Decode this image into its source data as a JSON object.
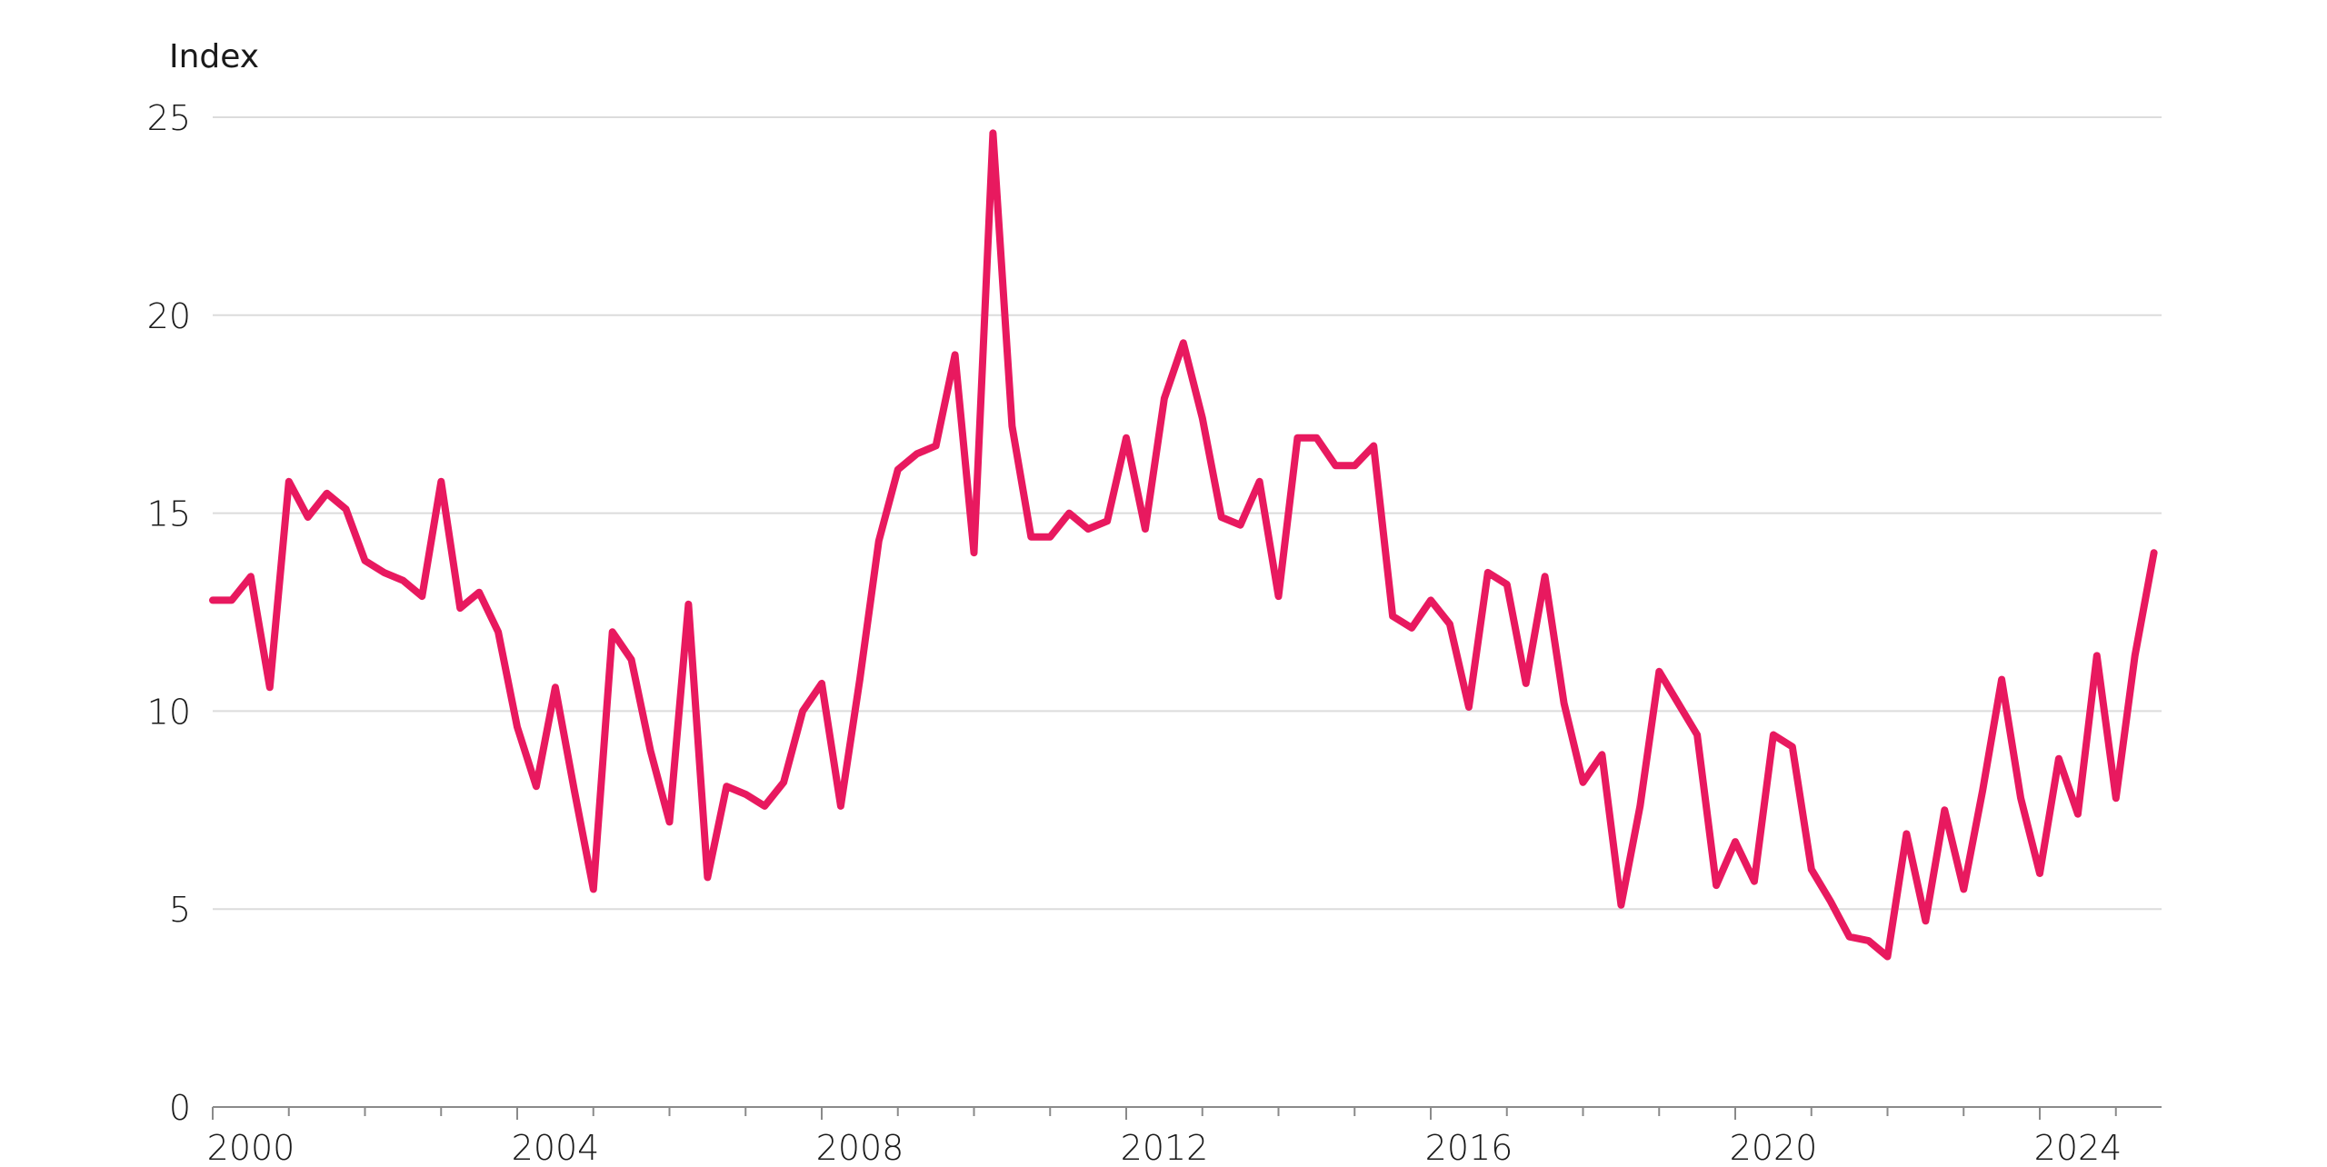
{
  "chart_data": {
    "type": "line",
    "ylabel": "Index",
    "ylim": [
      0,
      25
    ],
    "xlim": [
      2000,
      2025.6
    ],
    "yticks": [
      0,
      5,
      10,
      15,
      20,
      25
    ],
    "xticks": [
      "2000",
      "2004",
      "2008",
      "2012",
      "2016",
      "2020",
      "2024"
    ],
    "grid": true,
    "line_color": "#e8195f",
    "series": [
      {
        "x": [
          2000.0,
          2000.25,
          2000.5,
          2000.75,
          2001.0,
          2001.25,
          2001.5,
          2001.75,
          2002.0,
          2002.25,
          2002.5,
          2002.75,
          2003.0,
          2003.25,
          2003.5,
          2003.75,
          2004.0,
          2004.25,
          2004.5,
          2004.75,
          2005.0,
          2005.25,
          2005.5,
          2005.75,
          2006.0,
          2006.25,
          2006.5,
          2006.75,
          2007.0,
          2007.25,
          2007.5,
          2007.75,
          2008.0,
          2008.25,
          2008.5,
          2008.75,
          2009.0,
          2009.25,
          2009.5,
          2009.75,
          2010.0,
          2010.25,
          2010.5,
          2010.75,
          2011.0,
          2011.25,
          2011.5,
          2011.75,
          2012.0,
          2012.25,
          2012.5,
          2012.75,
          2013.0,
          2013.25,
          2013.5,
          2013.75,
          2014.0,
          2014.25,
          2014.5,
          2014.75,
          2015.0,
          2015.25,
          2015.5,
          2015.75,
          2016.0,
          2016.25,
          2016.5,
          2016.75,
          2017.0,
          2017.25,
          2017.5,
          2017.75,
          2018.0,
          2018.25,
          2018.5,
          2018.75,
          2019.0,
          2019.25,
          2019.5,
          2019.75,
          2020.0,
          2020.25,
          2020.5,
          2020.75,
          2021.0,
          2021.25,
          2021.5,
          2021.75,
          2022.0,
          2022.25,
          2022.5,
          2022.75,
          2023.0,
          2023.25,
          2023.5,
          2023.75,
          2024.0,
          2024.25,
          2024.5,
          2024.75,
          2025.0,
          2025.25,
          2025.5
        ],
        "y": [
          12.8,
          12.8,
          13.4,
          10.6,
          15.8,
          14.9,
          15.5,
          15.1,
          13.8,
          13.5,
          13.3,
          12.9,
          15.8,
          12.6,
          13.0,
          12.0,
          9.6,
          8.1,
          10.6,
          8.0,
          5.5,
          12.0,
          11.3,
          9.0,
          7.2,
          12.7,
          5.8,
          8.1,
          7.9,
          7.6,
          8.2,
          10.0,
          10.7,
          7.6,
          10.8,
          14.3,
          16.1,
          16.5,
          16.7,
          19.0,
          14.0,
          24.6,
          17.2,
          14.4,
          14.4,
          15.0,
          14.6,
          14.8,
          16.9,
          14.6,
          17.9,
          19.3,
          17.4,
          14.9,
          14.7,
          15.8,
          12.9,
          16.9,
          16.9,
          16.2,
          16.2,
          16.7,
          12.4,
          12.1,
          12.8,
          12.2,
          10.1,
          13.5,
          13.2,
          10.7,
          13.4,
          10.2,
          8.2,
          8.9,
          5.1,
          7.6,
          11.0,
          10.2,
          9.4,
          5.6,
          6.7,
          5.7,
          9.4,
          9.1,
          6.0,
          5.2,
          4.3,
          4.2,
          3.8,
          6.9,
          4.7,
          7.5,
          5.5,
          8.0,
          10.8,
          7.8,
          5.9,
          8.8,
          7.4,
          11.4,
          7.8,
          11.4,
          14.0
        ]
      }
    ]
  }
}
